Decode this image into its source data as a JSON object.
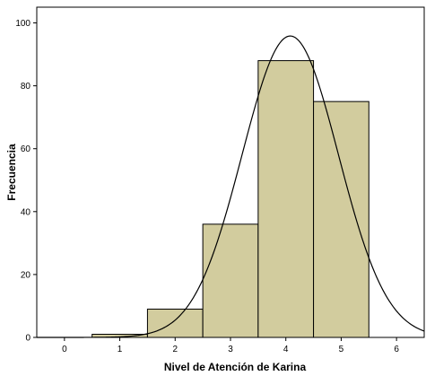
{
  "chart_data": {
    "type": "bar",
    "subtype": "histogram",
    "title": "",
    "xlabel": "Nivel de Atención de Karina",
    "ylabel": "Frecuencia",
    "categories": [
      1,
      2,
      3,
      4,
      5
    ],
    "values": [
      1,
      9,
      36,
      88,
      75
    ],
    "bin_width": 1,
    "xlim": [
      -0.5,
      6.5
    ],
    "ylim": [
      0,
      105
    ],
    "x_ticks": [
      0,
      1,
      2,
      3,
      4,
      5,
      6
    ],
    "y_ticks": [
      0,
      20,
      40,
      60,
      80,
      100
    ],
    "grid": false,
    "legend": "none",
    "colors": {
      "bar_fill": "#d2cc9e",
      "bar_stroke": "#000000",
      "plot_background": "#ffffff",
      "curve": "#000000"
    },
    "normal_curve": {
      "mean": 4.08,
      "std_dev": 0.87,
      "n": 209
    }
  }
}
